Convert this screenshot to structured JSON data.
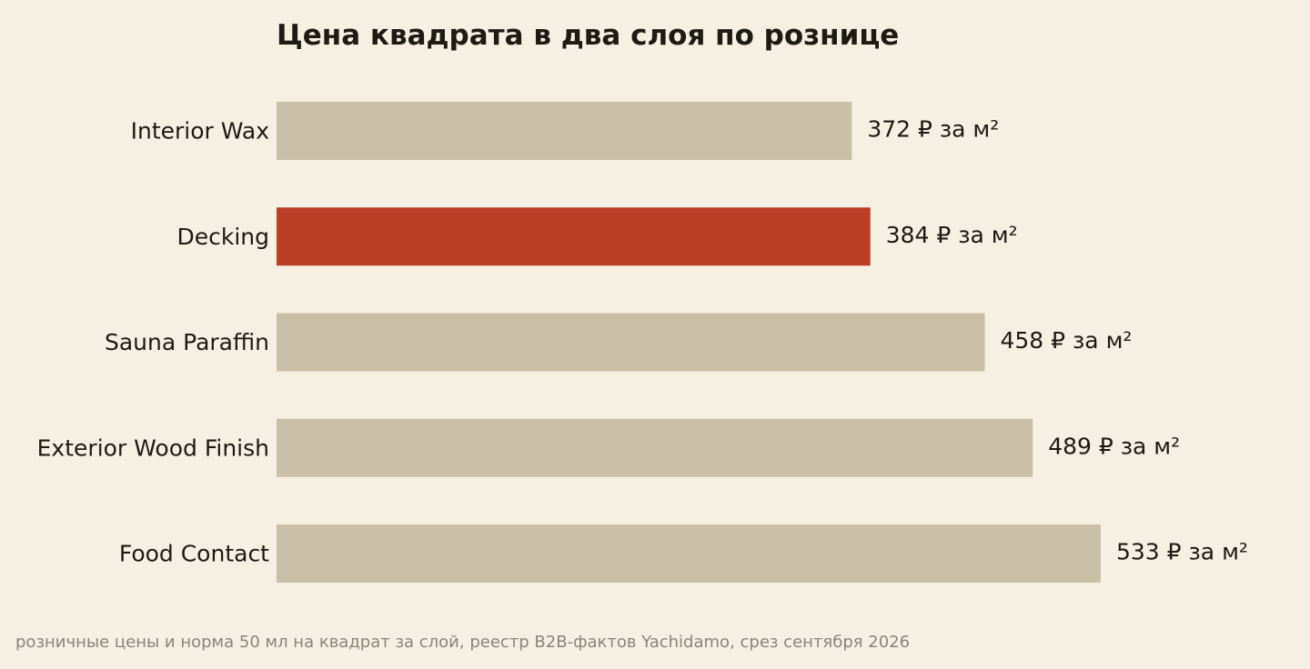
{
  "chart_data": {
    "type": "bar",
    "orientation": "horizontal",
    "title": "Цена квадрата в два слоя по рознице",
    "categories": [
      "Interior Wax",
      "Decking",
      "Sauna Paraffin",
      "Exterior Wood Finish",
      "Food Contact"
    ],
    "values": [
      372,
      384,
      458,
      489,
      533
    ],
    "value_labels": [
      "372 ₽ за м²",
      "384 ₽ за м²",
      "458 ₽ за м²",
      "489 ₽ за м²",
      "533 ₽ за м²"
    ],
    "highlight_category": "Decking",
    "xlim": [
      0,
      533
    ],
    "grid": false,
    "xlabel": "",
    "ylabel": ""
  },
  "colors": {
    "background": "#f6f0e3",
    "bar": "#c9bfa7",
    "highlight": "#bb3e27",
    "text": "#1e1a14",
    "footnote": "#8b8479"
  },
  "footnote": "розничные цены и норма 50 мл на квадрат за слой, реестр B2B-фактов Yachidamo, срез сентября 2026"
}
